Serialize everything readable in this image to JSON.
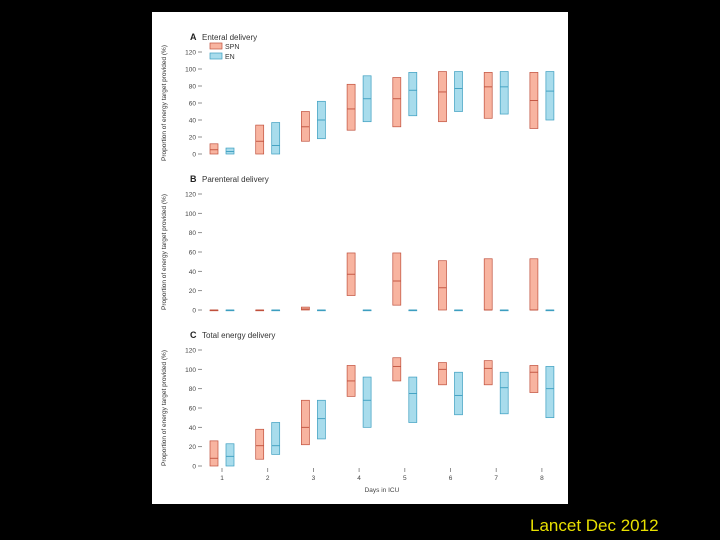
{
  "caption": "Lancet Dec 2012",
  "colors": {
    "spn_fill": "#f8b4a0",
    "spn_stroke": "#c0503c",
    "en_fill": "#a8dcec",
    "en_stroke": "#3c9ec0",
    "axis": "#777777",
    "grid": "#bbbbbb"
  },
  "chart_data": [
    {
      "type": "box",
      "letter": "A",
      "title": "Enteral delivery",
      "ylabel": "Proportion of energy target provided (%)",
      "ylim": [
        0,
        120
      ],
      "yticks": [
        "0",
        "20",
        "40",
        "60",
        "80",
        "100",
        "120"
      ],
      "legend": [
        {
          "label": "SPN",
          "series": "SPN"
        },
        {
          "label": "EN",
          "series": "EN"
        }
      ],
      "categories": [
        "1",
        "2",
        "3",
        "4",
        "5",
        "6",
        "7",
        "8"
      ],
      "series": [
        {
          "name": "SPN",
          "boxes": [
            {
              "low": 0,
              "mid": 5,
              "high": 12
            },
            {
              "low": 0,
              "mid": 15,
              "high": 34
            },
            {
              "low": 15,
              "mid": 32,
              "high": 50
            },
            {
              "low": 28,
              "mid": 53,
              "high": 82
            },
            {
              "low": 32,
              "mid": 65,
              "high": 90
            },
            {
              "low": 38,
              "mid": 73,
              "high": 97
            },
            {
              "low": 42,
              "mid": 79,
              "high": 96
            },
            {
              "low": 30,
              "mid": 63,
              "high": 96
            }
          ]
        },
        {
          "name": "EN",
          "boxes": [
            {
              "low": 0,
              "mid": 3,
              "high": 7
            },
            {
              "low": 0,
              "mid": 10,
              "high": 37
            },
            {
              "low": 18,
              "mid": 40,
              "high": 62
            },
            {
              "low": 38,
              "mid": 65,
              "high": 92
            },
            {
              "low": 45,
              "mid": 75,
              "high": 96
            },
            {
              "low": 50,
              "mid": 77,
              "high": 97
            },
            {
              "low": 47,
              "mid": 79,
              "high": 97
            },
            {
              "low": 40,
              "mid": 74,
              "high": 97
            }
          ]
        }
      ]
    },
    {
      "type": "box",
      "letter": "B",
      "title": "Parenteral delivery",
      "ylabel": "Proportion of energy target provided (%)",
      "ylim": [
        0,
        120
      ],
      "yticks": [
        "0",
        "20",
        "40",
        "60",
        "80",
        "100",
        "120"
      ],
      "categories": [
        "1",
        "2",
        "3",
        "4",
        "5",
        "6",
        "7",
        "8"
      ],
      "series": [
        {
          "name": "SPN",
          "boxes": [
            {
              "low": 0,
              "mid": 0,
              "high": 0
            },
            {
              "low": 0,
              "mid": 0,
              "high": 0
            },
            {
              "low": 0,
              "mid": 1,
              "high": 3
            },
            {
              "low": 15,
              "mid": 37,
              "high": 59
            },
            {
              "low": 5,
              "mid": 30,
              "high": 59
            },
            {
              "low": 0,
              "mid": 23,
              "high": 51
            },
            {
              "low": 0,
              "mid": 0,
              "high": 53
            },
            {
              "low": 0,
              "mid": 0,
              "high": 53
            }
          ]
        },
        {
          "name": "EN",
          "boxes": [
            {
              "low": 0,
              "mid": 0,
              "high": 0
            },
            {
              "low": 0,
              "mid": 0,
              "high": 0
            },
            {
              "low": 0,
              "mid": 0,
              "high": 0
            },
            {
              "low": 0,
              "mid": 0,
              "high": 0
            },
            {
              "low": 0,
              "mid": 0,
              "high": 0
            },
            {
              "low": 0,
              "mid": 0,
              "high": 0
            },
            {
              "low": 0,
              "mid": 0,
              "high": 0
            },
            {
              "low": 0,
              "mid": 0,
              "high": 0
            }
          ]
        }
      ]
    },
    {
      "type": "box",
      "letter": "C",
      "title": "Total energy delivery",
      "ylabel": "Proportion of energy target provided (%)",
      "ylim": [
        0,
        120
      ],
      "yticks": [
        "0",
        "20",
        "40",
        "60",
        "80",
        "100",
        "120"
      ],
      "xlabel": "Days in ICU",
      "categories": [
        "1",
        "2",
        "3",
        "4",
        "5",
        "6",
        "7",
        "8"
      ],
      "series": [
        {
          "name": "SPN",
          "boxes": [
            {
              "low": 0,
              "mid": 8,
              "high": 26
            },
            {
              "low": 7,
              "mid": 21,
              "high": 38
            },
            {
              "low": 22,
              "mid": 40,
              "high": 68
            },
            {
              "low": 72,
              "mid": 88,
              "high": 104
            },
            {
              "low": 88,
              "mid": 103,
              "high": 112
            },
            {
              "low": 84,
              "mid": 100,
              "high": 107
            },
            {
              "low": 84,
              "mid": 101,
              "high": 109
            },
            {
              "low": 76,
              "mid": 97,
              "high": 104
            }
          ]
        },
        {
          "name": "EN",
          "boxes": [
            {
              "low": 0,
              "mid": 10,
              "high": 23
            },
            {
              "low": 12,
              "mid": 21,
              "high": 45
            },
            {
              "low": 28,
              "mid": 49,
              "high": 68
            },
            {
              "low": 40,
              "mid": 68,
              "high": 92
            },
            {
              "low": 45,
              "mid": 75,
              "high": 92
            },
            {
              "low": 53,
              "mid": 73,
              "high": 97
            },
            {
              "low": 54,
              "mid": 81,
              "high": 97
            },
            {
              "low": 50,
              "mid": 80,
              "high": 103
            }
          ]
        }
      ]
    }
  ]
}
